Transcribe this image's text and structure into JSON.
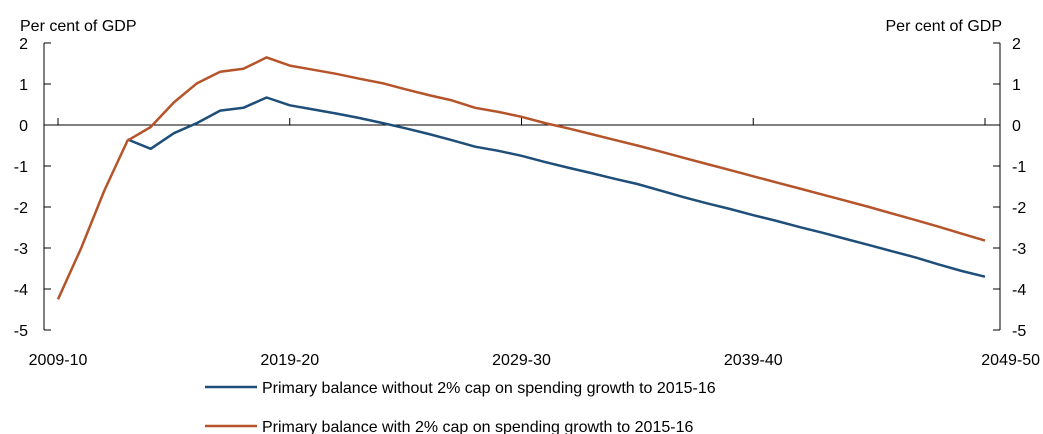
{
  "chart_data": {
    "type": "line",
    "title": "",
    "y_unit_left": "Per cent of GDP",
    "y_unit_right": "Per cent of GDP",
    "ylim": [
      -5,
      2
    ],
    "y_ticks": [
      "2",
      "1",
      "0",
      "-1",
      "-2",
      "-3",
      "-4",
      "-5"
    ],
    "x_tick_labels": [
      "2009-10",
      "2019-20",
      "2029-30",
      "2039-40",
      "2049-50"
    ],
    "x_start_year": 2009,
    "x_end_year": 2049,
    "grid": false,
    "legend_position": "bottom",
    "series": [
      {
        "name": "Primary balance without 2% cap on spending growth to 2015-16",
        "color": "#1f4e79",
        "x": [
          2012,
          2013,
          2014,
          2015,
          2016,
          2017,
          2018,
          2019,
          2020,
          2021,
          2022,
          2023,
          2024,
          2025,
          2026,
          2027,
          2028,
          2029,
          2030,
          2031,
          2032,
          2033,
          2034,
          2035,
          2036,
          2037,
          2038,
          2039,
          2040,
          2041,
          2042,
          2043,
          2044,
          2045,
          2046,
          2047,
          2048,
          2049
        ],
        "y": [
          -0.35,
          -0.58,
          -0.2,
          0.05,
          0.35,
          0.42,
          0.67,
          0.48,
          0.38,
          0.28,
          0.17,
          0.05,
          -0.08,
          -0.22,
          -0.37,
          -0.53,
          -0.63,
          -0.75,
          -0.9,
          -1.04,
          -1.17,
          -1.31,
          -1.44,
          -1.6,
          -1.76,
          -1.91,
          -2.05,
          -2.2,
          -2.34,
          -2.49,
          -2.63,
          -2.78,
          -2.93,
          -3.08,
          -3.23,
          -3.4,
          -3.56,
          -3.7
        ]
      },
      {
        "name": "Primary balance with 2% cap on spending growth to 2015-16",
        "color": "#b5542a",
        "x": [
          2009,
          2010,
          2011,
          2012,
          2013,
          2014,
          2015,
          2016,
          2017,
          2018,
          2019,
          2020,
          2021,
          2022,
          2023,
          2024,
          2025,
          2026,
          2027,
          2028,
          2029,
          2030,
          2031,
          2032,
          2033,
          2034,
          2035,
          2036,
          2037,
          2038,
          2039,
          2040,
          2041,
          2042,
          2043,
          2044,
          2045,
          2046,
          2047,
          2048,
          2049
        ],
        "y": [
          -4.25,
          -3.0,
          -1.6,
          -0.38,
          -0.05,
          0.55,
          1.02,
          1.3,
          1.37,
          1.65,
          1.45,
          1.35,
          1.25,
          1.13,
          1.02,
          0.87,
          0.73,
          0.6,
          0.42,
          0.32,
          0.2,
          0.05,
          -0.08,
          -0.22,
          -0.36,
          -0.5,
          -0.65,
          -0.8,
          -0.95,
          -1.1,
          -1.25,
          -1.4,
          -1.55,
          -1.7,
          -1.85,
          -2.0,
          -2.16,
          -2.32,
          -2.48,
          -2.65,
          -2.82
        ]
      }
    ]
  }
}
